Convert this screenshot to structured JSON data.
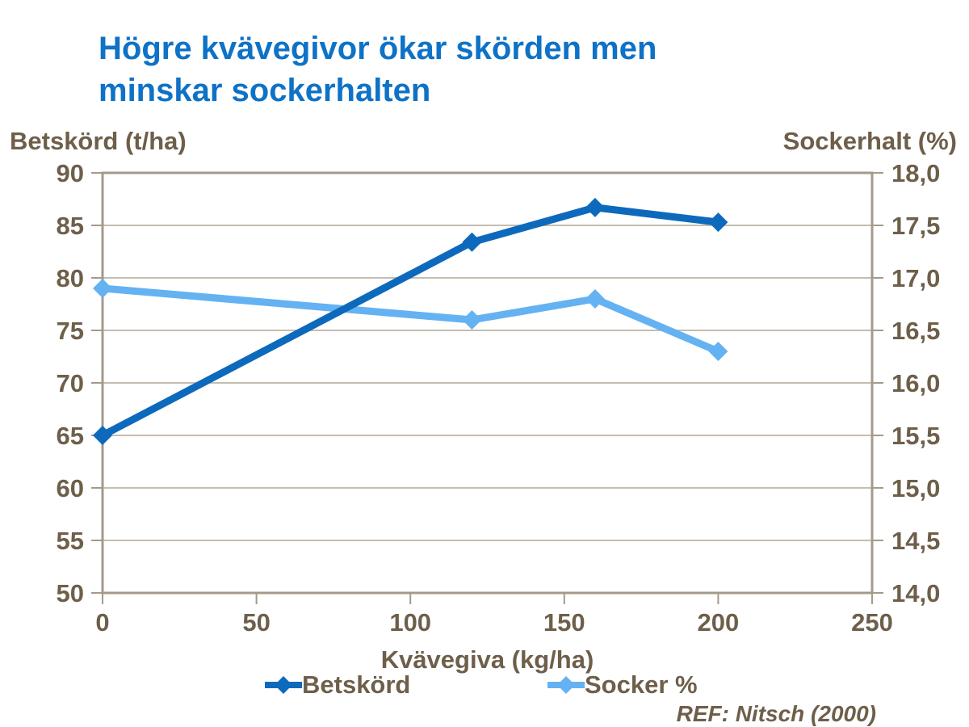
{
  "title": "Högre kvävegivor ökar skörden men\nminskar sockerhalten",
  "ref_note": "REF: Nitsch (2000)",
  "colors": {
    "title_blue": "#0E72C6",
    "betskord_blue": "#0D69BC",
    "socker_blue": "#64B2F2",
    "text_brown": "#6E5F4A",
    "grid": "#C5BDB0",
    "axis_border": "#A49A8B",
    "background": "#FFFFFF"
  },
  "chart_data": {
    "type": "line",
    "title": "Högre kvävegivor ökar skörden men minskar sockerhalten",
    "x": [
      0,
      120,
      160,
      200
    ],
    "series": [
      {
        "name": "Betskörd",
        "axis": "left",
        "color_key": "betskord_blue",
        "values": [
          65.0,
          83.4,
          86.7,
          85.3
        ]
      },
      {
        "name": "Socker %",
        "axis": "right",
        "color_key": "socker_blue",
        "values": [
          16.9,
          16.6,
          16.8,
          16.3
        ]
      }
    ],
    "x_axis": {
      "label": "Kvävegiva (kg/ha)",
      "min": 0,
      "max": 250,
      "step": 50,
      "tick_labels": [
        "0",
        "50",
        "100",
        "150",
        "200",
        "250"
      ]
    },
    "left_axis": {
      "label": "Betskörd (t/ha)",
      "min": 50,
      "max": 90,
      "step": 5,
      "tick_labels": [
        "50",
        "55",
        "60",
        "65",
        "70",
        "75",
        "80",
        "85",
        "90"
      ]
    },
    "right_axis": {
      "label": "Sockerhalt (%)",
      "min": 14.0,
      "max": 18.0,
      "step": 0.5,
      "tick_labels": [
        "14,0",
        "14,5",
        "15,0",
        "15,5",
        "16,0",
        "16,5",
        "17,0",
        "17,5",
        "18,0"
      ]
    },
    "grid": "horizontal-only",
    "legend_position": "bottom",
    "marker": "diamond"
  },
  "legend": {
    "items": [
      {
        "label": "Betskörd",
        "color_key": "betskord_blue"
      },
      {
        "label": "Socker %",
        "color_key": "socker_blue"
      }
    ]
  }
}
